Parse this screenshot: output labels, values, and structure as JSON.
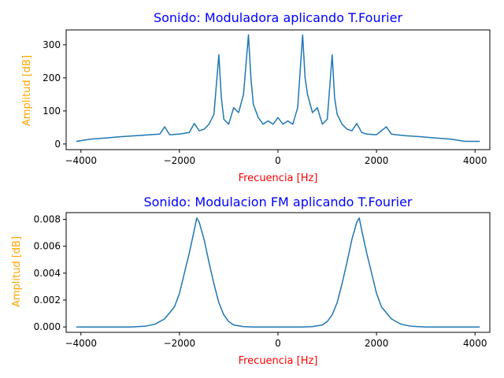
{
  "colors": {
    "title": "#0000ff",
    "xlabel": "#ff0000",
    "ylabel": "#ffa500",
    "series": "#1f77b4",
    "axis": "#000000"
  },
  "chart_data": [
    {
      "type": "line",
      "title": "Sonido: Moduladora aplicando T.Fourier",
      "xlabel": "Frecuencia [Hz]",
      "ylabel": "Amplitud [dB]",
      "xlim": [
        -4300,
        4300
      ],
      "ylim": [
        -17,
        345
      ],
      "xticks": [
        -4000,
        -2000,
        0,
        2000,
        4000
      ],
      "xtick_labels": [
        "−4000",
        "−2000",
        "0",
        "2000",
        "4000"
      ],
      "yticks": [
        0,
        100,
        200,
        300
      ],
      "ytick_labels": [
        "0",
        "100",
        "200",
        "300"
      ],
      "grid": false,
      "series": [
        {
          "x": [
            -4096,
            -3800,
            -3500,
            -3200,
            -2900,
            -2600,
            -2400,
            -2300,
            -2200,
            -2000,
            -1800,
            -1700,
            -1600,
            -1500,
            -1400,
            -1300,
            -1200,
            -1150,
            -1100,
            -1000,
            -900,
            -800,
            -700,
            -600,
            -550,
            -500,
            -400,
            -300,
            -200,
            -100,
            0,
            100,
            200,
            300,
            400,
            500,
            550,
            600,
            700,
            800,
            900,
            1000,
            1100,
            1150,
            1200,
            1300,
            1400,
            1500,
            1600,
            1700,
            1800,
            2000,
            2200,
            2300,
            2400,
            2600,
            2900,
            3200,
            3500,
            3800,
            4096
          ],
          "y": [
            8,
            15,
            18,
            22,
            25,
            28,
            30,
            52,
            28,
            30,
            35,
            62,
            40,
            45,
            60,
            90,
            270,
            140,
            75,
            60,
            110,
            95,
            150,
            330,
            200,
            120,
            80,
            60,
            70,
            60,
            80,
            60,
            70,
            60,
            110,
            330,
            200,
            150,
            95,
            110,
            60,
            75,
            270,
            140,
            90,
            60,
            45,
            40,
            62,
            35,
            30,
            28,
            52,
            30,
            28,
            25,
            22,
            18,
            15,
            8,
            8
          ]
        }
      ]
    },
    {
      "type": "line",
      "title": "Sonido: Modulacion FM aplicando T.Fourier",
      "xlabel": "Frecuencia [Hz]",
      "ylabel": "Amplitud [dB]",
      "xlim": [
        -4300,
        4300
      ],
      "ylim": [
        -0.0004,
        0.0085
      ],
      "xticks": [
        -4000,
        -2000,
        0,
        2000,
        4000
      ],
      "xtick_labels": [
        "−4000",
        "−2000",
        "0",
        "2000",
        "4000"
      ],
      "yticks": [
        0,
        0.002,
        0.004,
        0.006,
        0.008
      ],
      "ytick_labels": [
        "0.000",
        "0.002",
        "0.004",
        "0.006",
        "0.008"
      ],
      "grid": false,
      "series": [
        {
          "x": [
            -4096,
            -3000,
            -2700,
            -2500,
            -2300,
            -2100,
            -2000,
            -1900,
            -1800,
            -1700,
            -1650,
            -1600,
            -1500,
            -1400,
            -1300,
            -1200,
            -1100,
            -1000,
            -900,
            -700,
            -500,
            0,
            500,
            700,
            900,
            1000,
            1100,
            1200,
            1300,
            1400,
            1500,
            1600,
            1650,
            1700,
            1800,
            1900,
            2000,
            2100,
            2300,
            2500,
            2700,
            3000,
            4096
          ],
          "y": [
            0,
            0,
            5e-05,
            0.0002,
            0.0006,
            0.0015,
            0.0025,
            0.004,
            0.0055,
            0.0072,
            0.0081,
            0.0078,
            0.0065,
            0.0048,
            0.0032,
            0.0018,
            0.0009,
            0.0004,
            0.00015,
            3e-05,
            0,
            0,
            0,
            3e-05,
            0.00015,
            0.0004,
            0.0009,
            0.0018,
            0.0032,
            0.0048,
            0.0065,
            0.0078,
            0.0081,
            0.0072,
            0.0055,
            0.004,
            0.0025,
            0.0015,
            0.0006,
            0.0002,
            5e-05,
            0,
            0
          ]
        }
      ]
    }
  ]
}
